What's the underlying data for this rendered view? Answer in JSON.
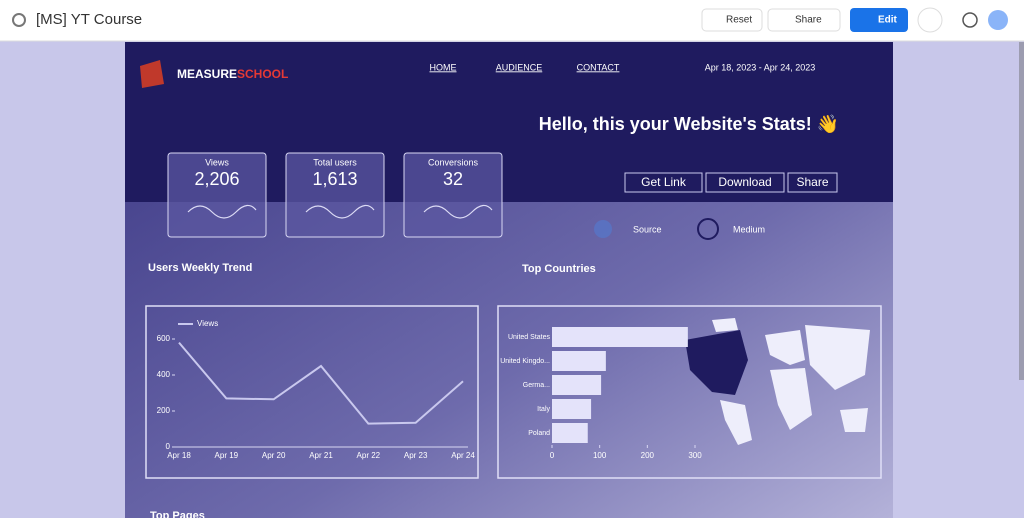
{
  "app_bar": {
    "title": "[MS]  YT Course",
    "reset": "Reset",
    "share": "Share",
    "edit": "Edit"
  },
  "report": {
    "logo": {
      "part1": "MEASURE",
      "part2": "SCHOOL"
    },
    "nav": [
      "HOME",
      "AUDIENCE",
      "CONTACT"
    ],
    "date_range": "Apr 18, 2023 - Apr 24, 2023",
    "heading": "Hello, this your Website's Stats! 👋",
    "scorecards": [
      {
        "label": "Views",
        "value": "2,206"
      },
      {
        "label": "Total users",
        "value": "1,613"
      },
      {
        "label": "Conversions",
        "value": "32"
      }
    ],
    "buttons": [
      "Get Link",
      "Download",
      "Share"
    ],
    "filters": [
      "Source",
      "Medium"
    ],
    "sections": [
      "Users Weekly Trend",
      "Top Countries",
      "Top Pages"
    ]
  },
  "line_chart": {
    "type": "line",
    "categories": [
      "Apr 18",
      "Apr 19",
      "Apr 20",
      "Apr 21",
      "Apr 22",
      "Apr 23",
      "Apr 24"
    ],
    "series": [
      {
        "name": "Views",
        "color": "#c9c8ee",
        "values": [
          580,
          270,
          265,
          450,
          130,
          135,
          365
        ]
      }
    ],
    "ylim": [
      0,
      600
    ],
    "yticks": [
      0,
      200,
      400,
      600
    ]
  },
  "bar_chart": {
    "type": "hbar",
    "categories": [
      "United States",
      "United Kingdo...",
      "Germa...",
      "Italy",
      "Poland"
    ],
    "values": [
      285,
      113,
      103,
      82,
      75
    ],
    "color": "#e4e3fa",
    "xlim": [
      0,
      300
    ],
    "xticks": [
      0,
      100,
      200,
      300
    ]
  }
}
